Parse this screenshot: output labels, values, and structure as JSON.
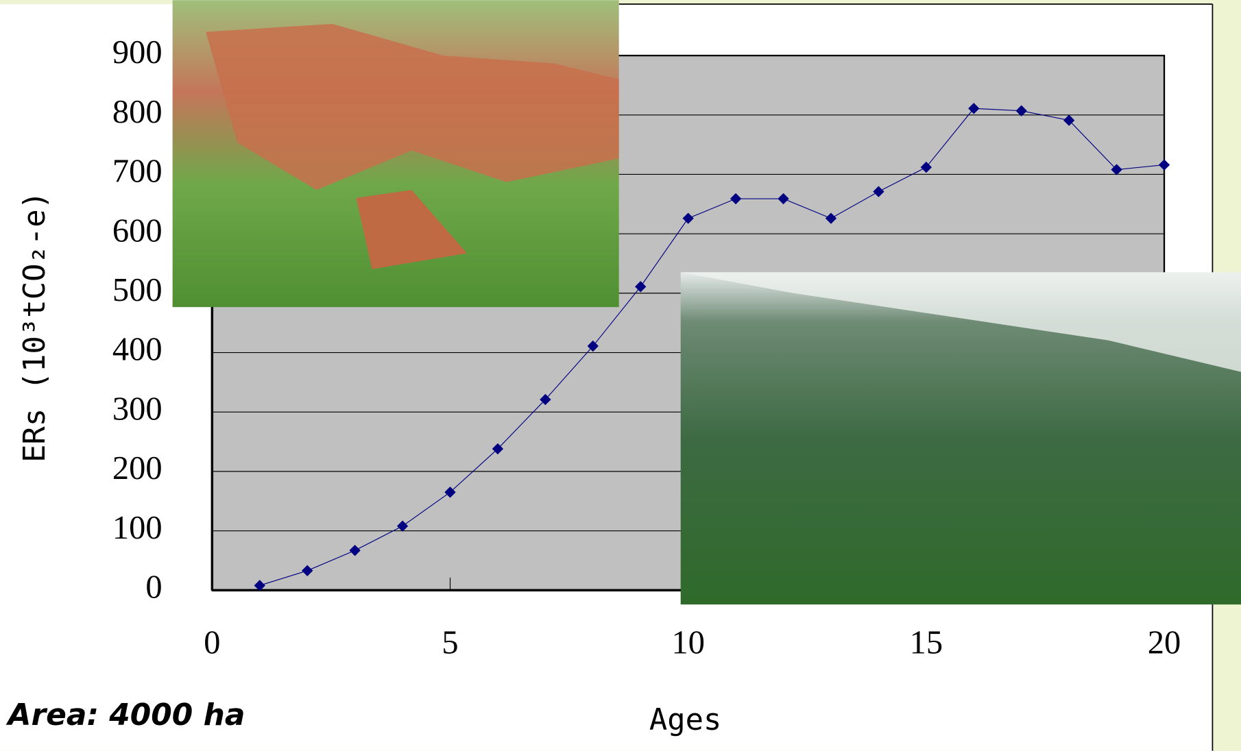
{
  "chart_data": {
    "type": "line",
    "x_label": "Ages",
    "y_label": "ERs (10³tCO₂-e)",
    "annotation": "Area: 4000 ha",
    "x": [
      1,
      2,
      3,
      4,
      5,
      6,
      7,
      8,
      9,
      10,
      11,
      12,
      13,
      14,
      15,
      16,
      17,
      18,
      19,
      20
    ],
    "values": [
      8,
      33,
      67,
      108,
      165,
      238,
      321,
      411,
      511,
      626,
      659,
      659,
      626,
      671,
      712,
      811,
      807,
      791,
      708,
      716
    ],
    "color": "#000080",
    "xlim": [
      0,
      20
    ],
    "xticks": [
      0,
      5,
      10,
      15,
      20
    ],
    "ylim": [
      0,
      900
    ],
    "yticks": [
      0,
      100,
      200,
      300,
      400,
      500,
      600,
      700,
      800,
      900
    ],
    "grid": true
  }
}
